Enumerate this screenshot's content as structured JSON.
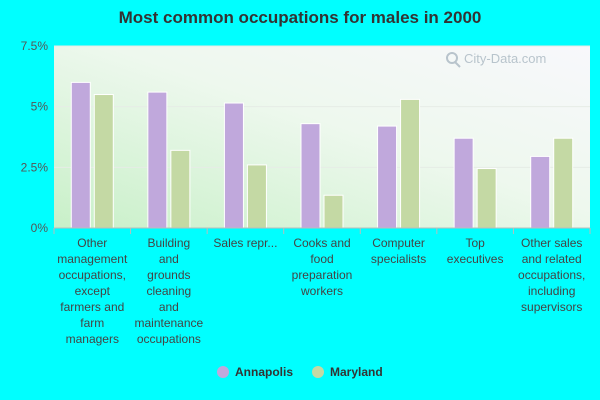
{
  "chart_data": {
    "type": "bar",
    "title": "Most common occupations for males in 2000",
    "xlabel": "",
    "ylabel": "",
    "ylim": [
      0,
      7.5
    ],
    "y_ticks": [
      {
        "value": 0,
        "label": "0%"
      },
      {
        "value": 2.5,
        "label": "2.5%"
      },
      {
        "value": 5,
        "label": "5%"
      },
      {
        "value": 7.5,
        "label": "7.5%"
      }
    ],
    "categories": [
      [
        "Other",
        "management",
        "occupations,",
        "except",
        "farmers and",
        "farm",
        "managers"
      ],
      [
        "Building",
        "and",
        "grounds",
        "cleaning",
        "and",
        "maintenance",
        "occupations"
      ],
      [
        "Sales repr..."
      ],
      [
        "Cooks and",
        "food",
        "preparation",
        "workers"
      ],
      [
        "Computer",
        "specialists"
      ],
      [
        "Top",
        "executives"
      ],
      [
        "Other sales",
        "and related",
        "occupations,",
        "including",
        "supervisors"
      ]
    ],
    "series": [
      {
        "name": "Annapolis",
        "color": "#c0a8dc",
        "values": [
          6.0,
          5.6,
          5.15,
          4.3,
          4.2,
          3.7,
          2.95
        ]
      },
      {
        "name": "Maryland",
        "color": "#c4d9a4",
        "values": [
          5.5,
          3.2,
          2.6,
          1.35,
          5.3,
          2.45,
          3.7
        ]
      }
    ],
    "grid": true,
    "legend_position": "bottom-center"
  },
  "watermark": {
    "text": "City-Data.com",
    "icon": "magnifier-icon"
  }
}
